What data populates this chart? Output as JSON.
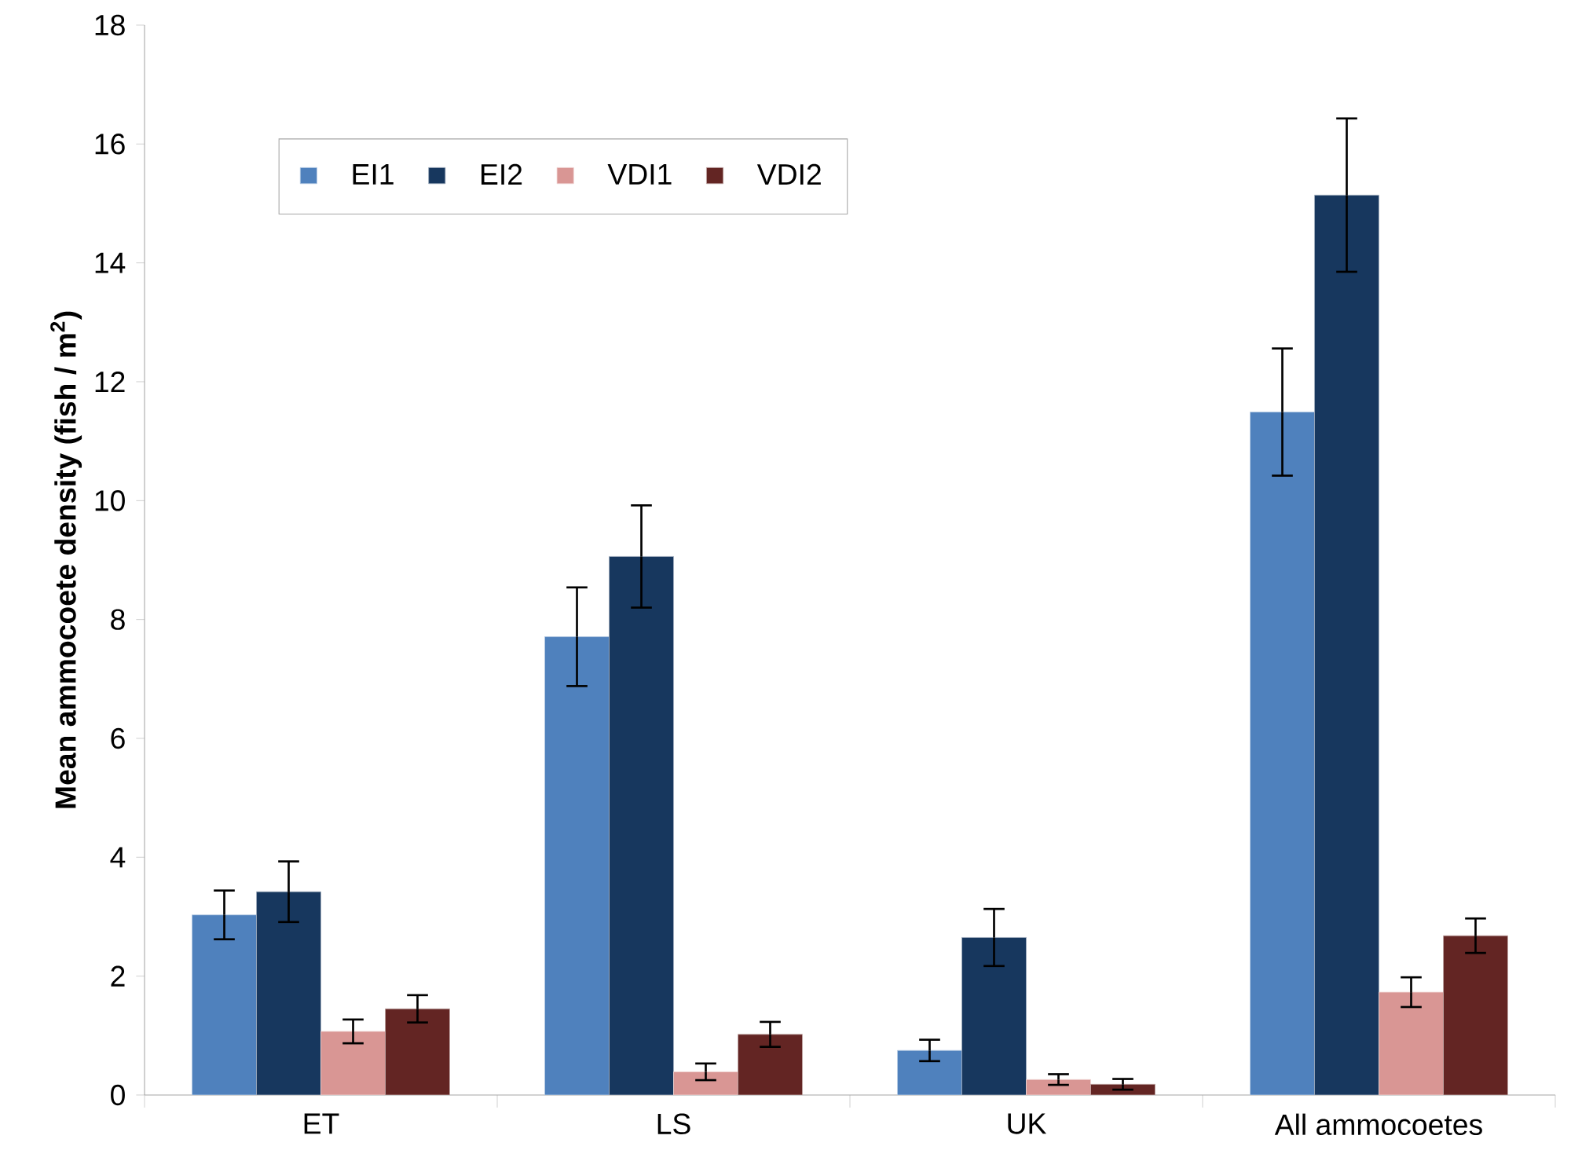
{
  "chart_data": {
    "type": "bar",
    "ylabel": "Mean ammocoete density (fish / m$^{2}$)",
    "categories": [
      "ET",
      "LS",
      "UK",
      "All ammocoetes"
    ],
    "series": [
      {
        "name": "EI1",
        "color": "#4f81bd",
        "values": [
          3.03,
          7.71,
          0.75,
          11.49
        ],
        "errors": [
          0.41,
          0.83,
          0.18,
          1.07
        ]
      },
      {
        "name": "EI2",
        "color": "#17375e",
        "values": [
          3.42,
          9.06,
          2.65,
          15.14
        ],
        "errors": [
          0.51,
          0.86,
          0.48,
          1.29
        ]
      },
      {
        "name": "VDI1",
        "color": "#d99694",
        "values": [
          1.07,
          0.39,
          0.26,
          1.73
        ],
        "errors": [
          0.2,
          0.14,
          0.09,
          0.25
        ]
      },
      {
        "name": "VDI2",
        "color": "#632523",
        "values": [
          1.45,
          1.02,
          0.18,
          2.68
        ],
        "errors": [
          0.23,
          0.21,
          0.09,
          0.29
        ]
      }
    ],
    "ylim": [
      0,
      18
    ],
    "yticks": [
      0,
      2,
      4,
      6,
      8,
      10,
      12,
      14,
      16,
      18
    ],
    "grid": false,
    "legend": "top left"
  }
}
